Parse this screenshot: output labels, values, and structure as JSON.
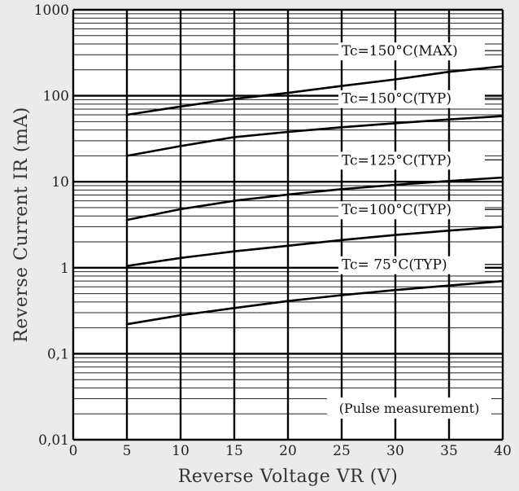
{
  "chart_data": {
    "type": "line",
    "xlabel": "Reverse Voltage  VR (V)",
    "ylabel": "Reverse Current  IR (mA)",
    "xlim": [
      0,
      40
    ],
    "ylim": [
      0.01,
      1000
    ],
    "yscale": "log",
    "grid": true,
    "x_ticks": [
      "0",
      "5",
      "10",
      "15",
      "20",
      "25",
      "30",
      "35",
      "40"
    ],
    "y_ticks": [
      "0,01",
      "0,1",
      "1",
      "10",
      "100",
      "1000"
    ],
    "series": [
      {
        "name": "Tc=150°C(MAX)",
        "x": [
          5,
          10,
          15,
          20,
          25,
          30,
          35,
          40
        ],
        "values": [
          60,
          75,
          92,
          108,
          130,
          155,
          190,
          220
        ]
      },
      {
        "name": "Tc=150°C(TYP)",
        "x": [
          5,
          10,
          15,
          20,
          25,
          30,
          35,
          40
        ],
        "values": [
          20,
          26,
          33,
          38,
          43,
          48,
          53,
          58
        ]
      },
      {
        "name": "Tc=125°C(TYP)",
        "x": [
          5,
          10,
          15,
          20,
          25,
          30,
          35,
          40
        ],
        "values": [
          3.6,
          4.8,
          6.0,
          7.1,
          8.2,
          9.2,
          10.2,
          11.2
        ]
      },
      {
        "name": "Tc=100°C(TYP)",
        "x": [
          5,
          10,
          15,
          20,
          25,
          30,
          35,
          40
        ],
        "values": [
          1.05,
          1.3,
          1.55,
          1.8,
          2.1,
          2.4,
          2.7,
          3.0
        ]
      },
      {
        "name": "Tc=  75°C(TYP)",
        "x": [
          5,
          10,
          15,
          20,
          25,
          30,
          35,
          40
        ],
        "values": [
          0.22,
          0.28,
          0.34,
          0.41,
          0.48,
          0.55,
          0.62,
          0.7
        ]
      }
    ],
    "annotations": [
      "(Pulse measurement)"
    ]
  }
}
